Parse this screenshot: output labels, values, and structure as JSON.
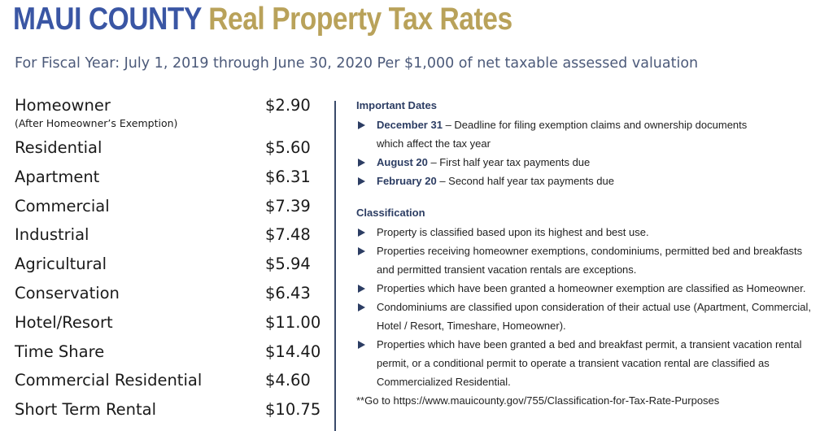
{
  "header": {
    "title_part1": "MAUI COUNTY",
    "title_part2": "Real Property Tax Rates",
    "subtitle": "For Fiscal Year: July 1, 2019 through June 30, 2020 Per $1,000 of net taxable assessed valuation"
  },
  "rates": [
    {
      "name": "Homeowner",
      "note": "(After Homeowner’s Exemption)",
      "value": "$2.90"
    },
    {
      "name": "Residential",
      "value": "$5.60"
    },
    {
      "name": "Apartment",
      "value": "$6.31"
    },
    {
      "name": "Commercial",
      "value": "$7.39"
    },
    {
      "name": "Industrial",
      "value": "$7.48"
    },
    {
      "name": "Agricultural",
      "value": "$5.94"
    },
    {
      "name": "Conservation",
      "value": "$6.43"
    },
    {
      "name": "Hotel/Resort",
      "value": "$11.00"
    },
    {
      "name": "Time Share",
      "value": "$14.40"
    },
    {
      "name": "Commercial Residential",
      "value": "$4.60"
    },
    {
      "name": "Short Term Rental",
      "value": "$10.75"
    }
  ],
  "important_dates": {
    "heading": "Important Dates",
    "items": [
      {
        "date": "December 31",
        "line1": " – Deadline for filing exemption claims and ownership documents",
        "line2": "which affect the tax year"
      },
      {
        "date": "August 20",
        "line1": " – First half year tax payments due"
      },
      {
        "date": "February 20",
        "line1": " – Second half year tax payments due"
      }
    ]
  },
  "classification": {
    "heading": "Classification",
    "items": [
      {
        "line1": "Property is classified based upon its highest and best use."
      },
      {
        "line1": "Properties receiving homeowner exemptions, condominiums, permitted bed and breakfasts",
        "line2": "and permitted transient vacation rentals are exceptions."
      },
      {
        "line1": "Properties which have been granted a homeowner exemption are classified as Homeowner."
      },
      {
        "line1": "Condominiums are classified upon consideration of their actual use (Apartment, Commercial,",
        "line2": "Hotel / Resort, Timeshare, Homeowner)."
      },
      {
        "line1": "Properties which have been granted a bed and breakfast permit, a transient vacation rental",
        "line2": "permit, or a conditional permit to operate a transient vacation rental are classified as",
        "line3": "Commercialized Residential."
      }
    ]
  },
  "footnote": {
    "prefix": "**Go to ",
    "link": "https://www.mauicounty.gov/755/Classification-for-Tax-Rate-Purposes"
  },
  "colors": {
    "title_blue": "#3a56a4",
    "title_gold": "#b9a25a",
    "subtitle_gray": "#4c5a7a",
    "navy": "#2c3d63"
  }
}
